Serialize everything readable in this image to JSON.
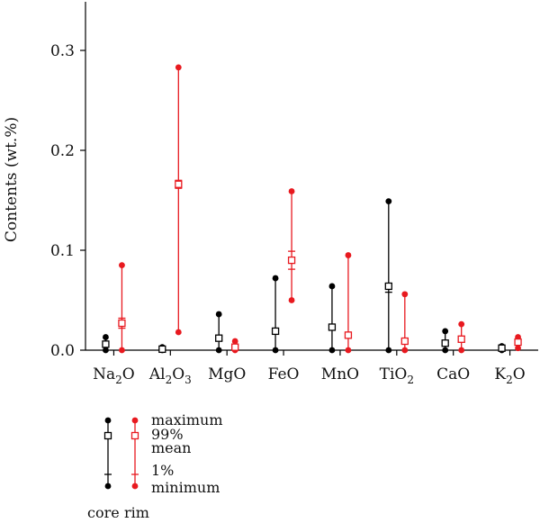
{
  "chart_data": {
    "type": "scatter",
    "title": "",
    "xlabel": "",
    "ylabel": "Contents (wt.%)",
    "ylim": [
      0,
      0.35
    ],
    "yticks": [
      "0.0",
      "0.1",
      "0.2",
      "0.3"
    ],
    "categories": [
      {
        "base": "Na",
        "sub": "2",
        "tail": "O"
      },
      {
        "base": "Al",
        "sub": "2",
        "tail": "O",
        "sub2": "3"
      },
      {
        "base": "MgO"
      },
      {
        "base": "FeO"
      },
      {
        "base": "MnO"
      },
      {
        "base": "TiO",
        "sub": "2"
      },
      {
        "base": "CaO"
      },
      {
        "base": "K",
        "sub": "2",
        "tail": "O"
      }
    ],
    "series": [
      {
        "name": "core",
        "color": "#000000",
        "max": [
          0.013,
          0.003,
          0.036,
          0.072,
          0.064,
          0.149,
          0.019,
          0.004
        ],
        "p99": [
          0.006,
          0.001,
          0.014,
          0.02,
          0.025,
          0.066,
          0.008,
          0.002
        ],
        "mean": [
          0.006,
          0.001,
          0.012,
          0.019,
          0.023,
          0.064,
          0.007,
          0.002
        ],
        "p1": [
          0.005,
          0.0,
          0.01,
          0.016,
          0.021,
          0.058,
          0.005,
          0.001
        ],
        "min": [
          0.0,
          0.0,
          0.0,
          0.0,
          0.0,
          0.0,
          0.0,
          0.0
        ]
      },
      {
        "name": "rim",
        "color": "#e8191f",
        "max": [
          0.085,
          0.283,
          0.009,
          0.159,
          0.095,
          0.056,
          0.026,
          0.013
        ],
        "p99": [
          0.032,
          0.17,
          0.005,
          0.099,
          0.017,
          0.011,
          0.014,
          0.01
        ],
        "mean": [
          0.027,
          0.166,
          0.003,
          0.09,
          0.015,
          0.009,
          0.011,
          0.008
        ],
        "p1": [
          0.022,
          0.162,
          0.001,
          0.081,
          0.013,
          0.007,
          0.008,
          0.006
        ],
        "min": [
          0.0,
          0.018,
          0.0,
          0.05,
          0.0,
          0.0,
          0.0,
          0.002
        ]
      }
    ],
    "legend": {
      "labels": [
        "maximum",
        "99%",
        "mean",
        "1%",
        "minimum"
      ],
      "series_labels": [
        "core",
        "rim"
      ],
      "placement": "bottom-left"
    },
    "grid": false
  }
}
